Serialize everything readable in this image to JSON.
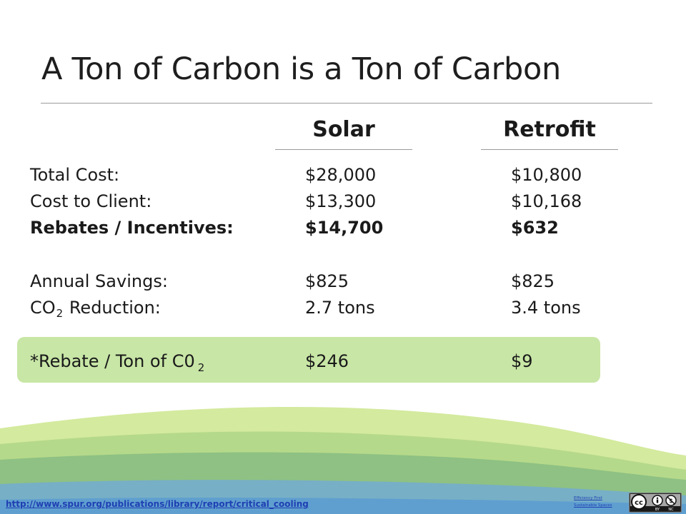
{
  "title": "A Ton of Carbon is a Ton of Carbon",
  "columns": {
    "solar": "Solar",
    "retrofit": "Retrofit"
  },
  "rows": {
    "total_cost": {
      "label": "Total Cost:",
      "solar": "$28,000",
      "retrofit": "$10,800"
    },
    "cost_to_client": {
      "label": "Cost to Client:",
      "solar": "$13,300",
      "retrofit": "$10,168"
    },
    "rebates": {
      "label": "Rebates / Incentives:",
      "solar": "$14,700",
      "retrofit": "$632"
    },
    "annual_savings": {
      "label": "Annual Savings:",
      "solar": "$825",
      "retrofit": "$825"
    },
    "co2_reduction": {
      "label_prefix": "CO",
      "label_sub": "2",
      "label_suffix": " Reduction:",
      "solar": "2.7 tons",
      "retrofit": "3.4 tons"
    },
    "rebate_per_ton": {
      "label_prefix": "*Rebate / Ton of C0",
      "label_sub": "2",
      "solar": "$246",
      "retrofit": "$9"
    }
  },
  "footer": {
    "link": "http://www.spur.org/publications/library/report/critical_cooling",
    "small_link_1": "Efficiency First",
    "small_link_2": "Sustainable Spaces",
    "license_badge": "cc-by-nc-license"
  },
  "colors": {
    "highlight": "#c8e6a6",
    "title_text": "#1e1e1e",
    "link": "#1f3fb3"
  }
}
